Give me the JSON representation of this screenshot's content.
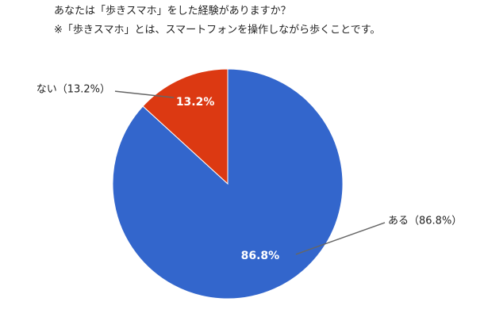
{
  "chart_data": {
    "type": "pie",
    "title": "あなたは「歩きスマホ」をした経験がありますか？",
    "subtitle": "※「歩きスマホ」とは、スマートフォンを操作しながら歩くことです。",
    "categories": [
      "ない",
      "ある"
    ],
    "values": [
      13.2,
      86.8
    ],
    "value_labels": [
      "13.2%",
      "86.8%"
    ],
    "outside_labels": [
      "ない（13.2%）",
      "ある（86.8%）"
    ],
    "colors": [
      "#dc3912",
      "#3366cc"
    ]
  }
}
